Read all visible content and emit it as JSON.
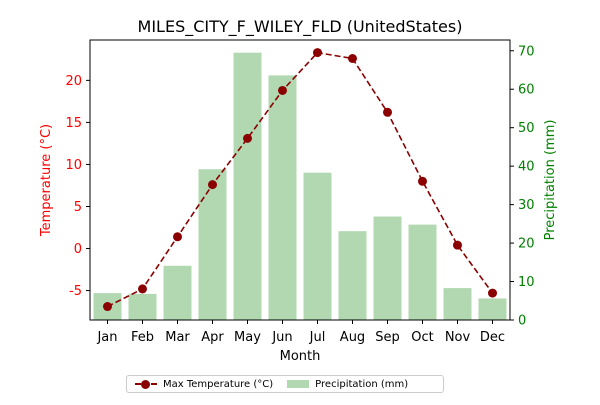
{
  "chart_data": {
    "type": "bar+line",
    "title": "MILES_CITY_F_WILEY_FLD (UnitedStates)",
    "xlabel": "Month",
    "categories": [
      "Jan",
      "Feb",
      "Mar",
      "Apr",
      "May",
      "Jun",
      "Jul",
      "Aug",
      "Sep",
      "Oct",
      "Nov",
      "Dec"
    ],
    "left_axis": {
      "label": "Temperature (°C)",
      "color": "#ff0000",
      "ylim": [
        -8.5,
        24.8
      ],
      "ticks": [
        -5,
        0,
        5,
        10,
        15,
        20
      ]
    },
    "right_axis": {
      "label": "Precipitation (mm)",
      "color": "#008000",
      "ylim": [
        0,
        72.8
      ],
      "ticks": [
        0,
        10,
        20,
        30,
        40,
        50,
        60,
        70
      ]
    },
    "series": [
      {
        "name": "Max Temperature (°C)",
        "kind": "line",
        "axis": "left",
        "color": "#8b0000",
        "line_style": "dashed",
        "marker": "circle",
        "values": [
          -6.9,
          -4.8,
          1.4,
          7.6,
          13.1,
          18.8,
          23.3,
          22.6,
          16.2,
          8.0,
          0.4,
          -5.3
        ]
      },
      {
        "name": "Precipitation (mm)",
        "kind": "bar",
        "axis": "right",
        "color": "#b2d8b2",
        "values": [
          7.0,
          6.8,
          14.1,
          39.2,
          69.5,
          63.6,
          38.3,
          23.1,
          26.9,
          24.8,
          8.3,
          5.6
        ]
      }
    ],
    "legend": {
      "placement": "bottom-center",
      "entries": [
        "Max Temperature (°C)",
        "Precipitation (mm)"
      ]
    },
    "grid": false
  }
}
